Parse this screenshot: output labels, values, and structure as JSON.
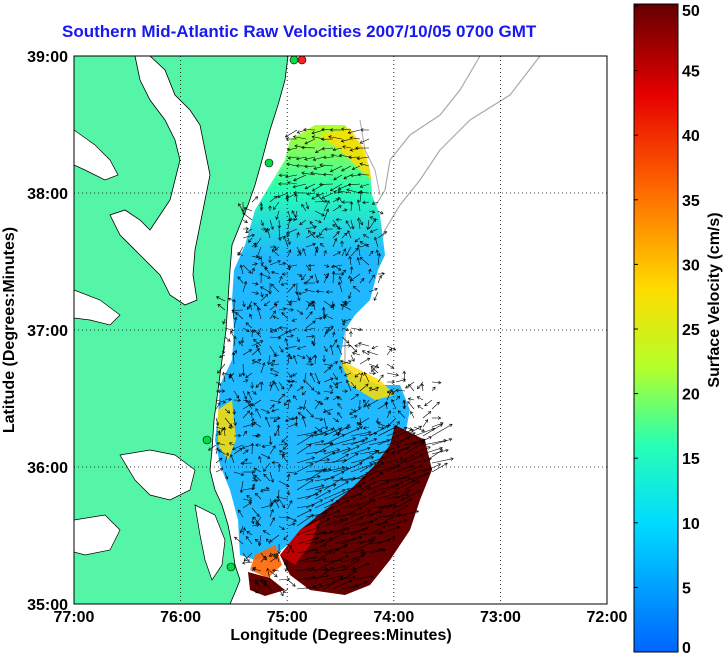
{
  "title": "Southern Mid-Atlantic Raw Velocities 2007/10/05 0700 GMT",
  "map": {
    "xlabel": "Longitude (Degrees:Minutes)",
    "ylabel": "Latitude (Degrees:Minutes)",
    "x_ticks": [
      "77:00",
      "76:00",
      "75:00",
      "74:00",
      "73:00",
      "72:00"
    ],
    "y_ticks": [
      "39:00",
      "38:00",
      "37:00",
      "36:00",
      "35:00"
    ],
    "land_color": "#55f5a8",
    "grid": "dotted"
  },
  "colorbar": {
    "label": "Surface Velocity (cm/s)",
    "ticks": [
      "50",
      "45",
      "40",
      "35",
      "30",
      "25",
      "20",
      "15",
      "10",
      "5",
      "0"
    ],
    "range": [
      0,
      50
    ],
    "colors": [
      "#0064ff",
      "#00dcff",
      "#28ffb4",
      "#b4ff28",
      "#ffdc00",
      "#ff6400",
      "#e60000",
      "#640000"
    ]
  }
}
